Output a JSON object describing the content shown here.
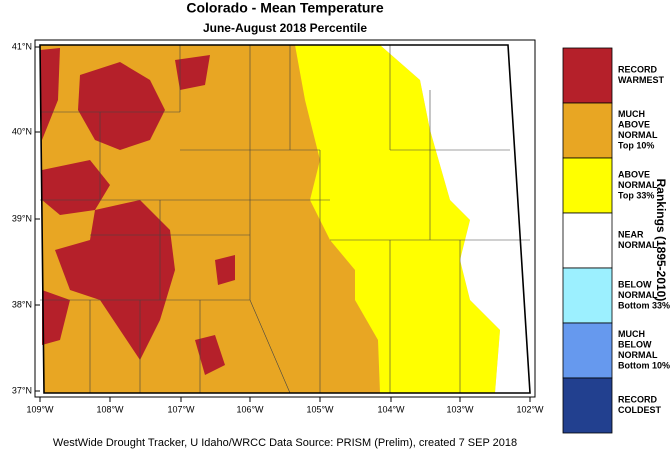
{
  "title": "Colorado - Mean Temperature",
  "subtitle": "June-August 2018 Percentile",
  "lat_labels": [
    "41°N",
    "40°N",
    "39°N",
    "38°N",
    "37°N"
  ],
  "lon_labels": [
    "109°W",
    "108°W",
    "107°W",
    "106°W",
    "105°W",
    "104°W",
    "103°W",
    "102°W"
  ],
  "legend": {
    "title": "Rankings (1895-2010)",
    "entries": [
      {
        "lines": [
          "RECORD",
          "WARMEST"
        ],
        "color": "#b5202a"
      },
      {
        "lines": [
          "MUCH",
          "ABOVE",
          "NORMAL",
          "Top 10%"
        ],
        "color": "#e8a623"
      },
      {
        "lines": [
          "ABOVE",
          "NORMAL",
          "Top 33%"
        ],
        "color": "#ffff00"
      },
      {
        "lines": [
          "NEAR",
          "NORMAL"
        ],
        "color": "#ffffff"
      },
      {
        "lines": [
          "BELOW",
          "NORMAL",
          "Bottom 33%"
        ],
        "color": "#9cf0ff"
      },
      {
        "lines": [
          "MUCH",
          "BELOW",
          "NORMAL",
          "Bottom 10%"
        ],
        "color": "#6699ee"
      },
      {
        "lines": [
          "RECORD",
          "COLDEST"
        ],
        "color": "#22408f"
      }
    ]
  },
  "credit": "WestWide Drought Tracker, U Idaho/WRCC Data Source: PRISM (Prelim), created  7 SEP 2018"
}
